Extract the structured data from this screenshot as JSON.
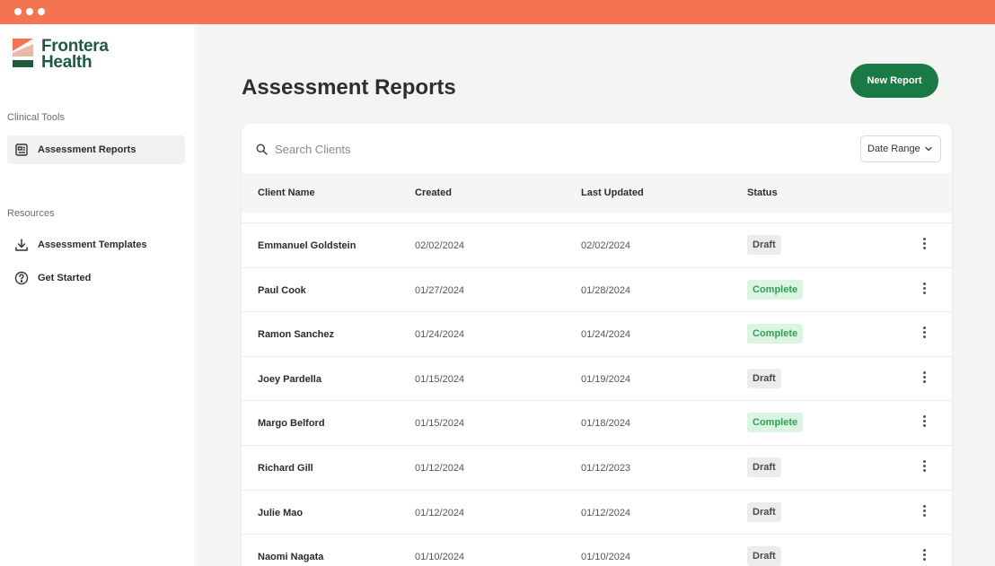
{
  "window": {
    "colors": {
      "titlebar": "#f47452"
    }
  },
  "brand": {
    "line1": "Frontera",
    "line2": "Health",
    "color": "#1f5a3e"
  },
  "sidebar": {
    "sections": [
      {
        "title": "Clinical Tools",
        "items": [
          {
            "label": "Assessment Reports",
            "icon": "report-icon",
            "active": true
          }
        ]
      },
      {
        "title": "Resources",
        "items": [
          {
            "label": "Assessment Templates",
            "icon": "download-icon",
            "active": false
          },
          {
            "label": "Get Started",
            "icon": "help-circle-icon",
            "active": false
          }
        ]
      }
    ]
  },
  "main": {
    "title": "Assessment Reports",
    "new_report_label": "New Report",
    "search_placeholder": "Search Clients",
    "date_range_label": "Date Range",
    "columns": [
      "Client Name",
      "Created",
      "Last Updated",
      "Status"
    ],
    "rows": [
      {
        "name": "Emmanuel Goldstein",
        "created": "02/02/2024",
        "updated": "02/02/2024",
        "status": "Draft"
      },
      {
        "name": "Paul Cook",
        "created": "01/27/2024",
        "updated": "01/28/2024",
        "status": "Complete"
      },
      {
        "name": "Ramon Sanchez",
        "created": "01/24/2024",
        "updated": "01/24/2024",
        "status": "Complete"
      },
      {
        "name": "Joey Pardella",
        "created": "01/15/2024",
        "updated": "01/19/2024",
        "status": "Draft"
      },
      {
        "name": "Margo Belford",
        "created": "01/15/2024",
        "updated": "01/18/2024",
        "status": "Complete"
      },
      {
        "name": "Richard Gill",
        "created": "01/12/2024",
        "updated": "01/12/2023",
        "status": "Draft"
      },
      {
        "name": "Julie Mao",
        "created": "01/12/2024",
        "updated": "01/12/2024",
        "status": "Draft"
      },
      {
        "name": "Naomi Nagata",
        "created": "01/10/2024",
        "updated": "01/10/2024",
        "status": "Draft"
      }
    ],
    "colors": {
      "accent": "#1a7a45",
      "complete_bg": "#dcf5e2",
      "complete_text": "#2f9e56",
      "draft_bg": "#ececea"
    }
  }
}
